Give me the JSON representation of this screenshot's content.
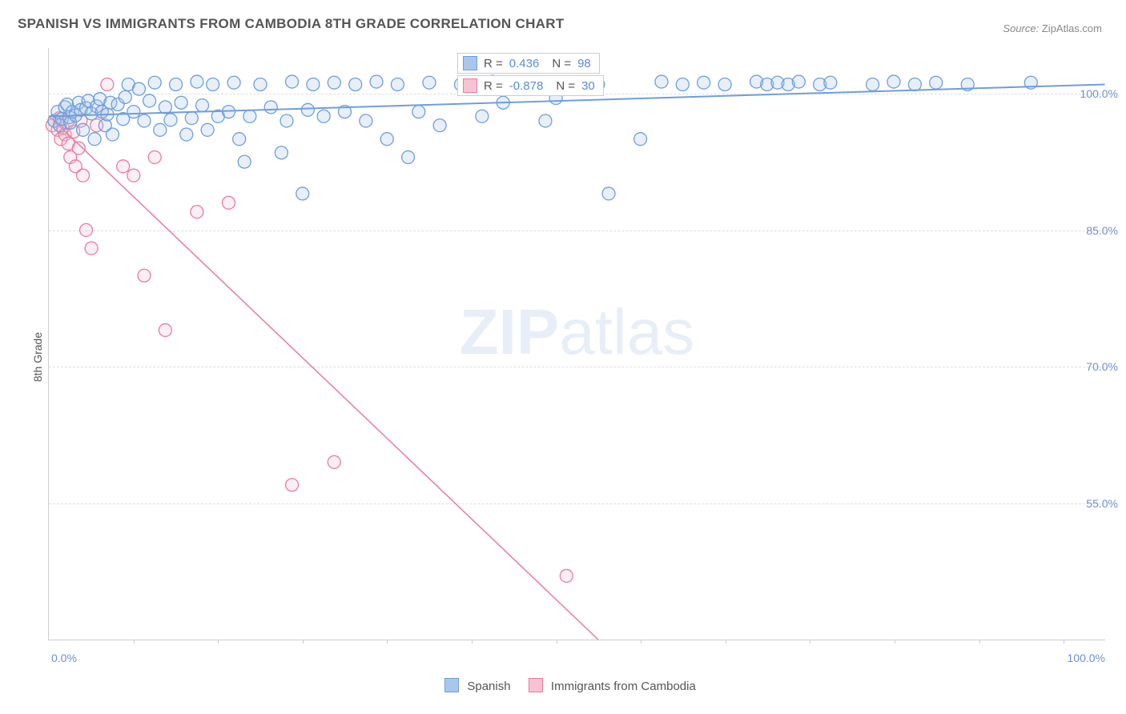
{
  "title": "SPANISH VS IMMIGRANTS FROM CAMBODIA 8TH GRADE CORRELATION CHART",
  "source_label": "Source:",
  "source_value": "ZipAtlas.com",
  "y_axis_label": "8th Grade",
  "watermark_bold": "ZIP",
  "watermark_light": "atlas",
  "chart": {
    "type": "scatter",
    "background": "#ffffff",
    "grid_color": "#dddddd",
    "axis_color": "#cccccc",
    "tick_label_color": "#6b8fd6",
    "xlim": [
      0,
      100
    ],
    "ylim": [
      40,
      105
    ],
    "x_ticks_first": "0.0%",
    "x_ticks_last": "100.0%",
    "y_ticks": [
      {
        "v": 100,
        "label": "100.0%"
      },
      {
        "v": 85,
        "label": "85.0%"
      },
      {
        "v": 70,
        "label": "70.0%"
      },
      {
        "v": 55,
        "label": "55.0%"
      }
    ],
    "x_minor_ticks": [
      8,
      16,
      24,
      32,
      40,
      48,
      56,
      64,
      72,
      80,
      88,
      96
    ],
    "marker_radius": 8
  },
  "series": {
    "spanish": {
      "label": "Spanish",
      "color_fill": "#a9c7ec",
      "color_stroke": "#6f9ed9",
      "trend": {
        "x1": 0,
        "y1": 97.5,
        "x2": 100,
        "y2": 101.0,
        "width": 2
      },
      "stats": {
        "r": "0.436",
        "n": "98"
      },
      "points": [
        [
          0.5,
          97
        ],
        [
          0.8,
          98
        ],
        [
          1.0,
          96.5
        ],
        [
          1.2,
          97.2
        ],
        [
          1.5,
          98.5
        ],
        [
          1.7,
          98.8
        ],
        [
          1.9,
          97.4
        ],
        [
          2.0,
          96.8
        ],
        [
          2.2,
          98.0
        ],
        [
          2.5,
          97.6
        ],
        [
          2.8,
          99.0
        ],
        [
          3.0,
          98.2
        ],
        [
          3.2,
          96.0
        ],
        [
          3.5,
          98.4
        ],
        [
          3.7,
          99.2
        ],
        [
          4.0,
          97.8
        ],
        [
          4.3,
          95.0
        ],
        [
          4.5,
          98.6
        ],
        [
          4.8,
          99.4
        ],
        [
          5.0,
          98.0
        ],
        [
          5.3,
          96.5
        ],
        [
          5.5,
          97.7
        ],
        [
          5.8,
          99.0
        ],
        [
          6.0,
          95.5
        ],
        [
          6.5,
          98.8
        ],
        [
          7.0,
          97.2
        ],
        [
          7.2,
          99.6
        ],
        [
          7.5,
          101.0
        ],
        [
          8.0,
          98.0
        ],
        [
          8.5,
          100.5
        ],
        [
          9.0,
          97.0
        ],
        [
          9.5,
          99.2
        ],
        [
          10.0,
          101.2
        ],
        [
          10.5,
          96.0
        ],
        [
          11.0,
          98.5
        ],
        [
          11.5,
          97.1
        ],
        [
          12.0,
          101.0
        ],
        [
          12.5,
          99.0
        ],
        [
          13.0,
          95.5
        ],
        [
          13.5,
          97.3
        ],
        [
          14.0,
          101.3
        ],
        [
          14.5,
          98.7
        ],
        [
          15.0,
          96.0
        ],
        [
          15.5,
          101.0
        ],
        [
          16.0,
          97.5
        ],
        [
          17.0,
          98.0
        ],
        [
          17.5,
          101.2
        ],
        [
          18.0,
          95.0
        ],
        [
          18.5,
          92.5
        ],
        [
          19.0,
          97.5
        ],
        [
          20.0,
          101.0
        ],
        [
          21.0,
          98.5
        ],
        [
          22.0,
          93.5
        ],
        [
          22.5,
          97.0
        ],
        [
          23.0,
          101.3
        ],
        [
          24.0,
          89.0
        ],
        [
          24.5,
          98.2
        ],
        [
          25.0,
          101.0
        ],
        [
          26.0,
          97.5
        ],
        [
          27.0,
          101.2
        ],
        [
          28.0,
          98.0
        ],
        [
          29.0,
          101.0
        ],
        [
          30.0,
          97.0
        ],
        [
          31.0,
          101.3
        ],
        [
          32.0,
          95.0
        ],
        [
          33.0,
          101.0
        ],
        [
          34.0,
          93.0
        ],
        [
          35.0,
          98.0
        ],
        [
          36.0,
          101.2
        ],
        [
          37.0,
          96.5
        ],
        [
          39.0,
          101.0
        ],
        [
          41.0,
          97.5
        ],
        [
          42.0,
          101.3
        ],
        [
          43.0,
          99.0
        ],
        [
          45.0,
          101.0
        ],
        [
          47.0,
          97.0
        ],
        [
          48.0,
          99.5
        ],
        [
          48.5,
          101.2
        ],
        [
          52.0,
          101.0
        ],
        [
          53.0,
          89.0
        ],
        [
          56.0,
          95.0
        ],
        [
          58.0,
          101.3
        ],
        [
          60.0,
          101.0
        ],
        [
          62.0,
          101.2
        ],
        [
          64.0,
          101.0
        ],
        [
          67.0,
          101.3
        ],
        [
          68.0,
          101.0
        ],
        [
          69.0,
          101.2
        ],
        [
          70.0,
          101.0
        ],
        [
          71.0,
          101.3
        ],
        [
          73.0,
          101.0
        ],
        [
          74.0,
          101.2
        ],
        [
          78.0,
          101.0
        ],
        [
          80.0,
          101.3
        ],
        [
          82.0,
          101.0
        ],
        [
          84.0,
          101.2
        ],
        [
          87.0,
          101.0
        ],
        [
          93.0,
          101.2
        ]
      ]
    },
    "cambodia": {
      "label": "Immigrants from Cambodia",
      "color_fill": "#f5c3d2",
      "color_stroke": "#e97ba2",
      "trend": {
        "x1": 0,
        "y1": 97.5,
        "x2": 52,
        "y2": 40.0,
        "width": 1.5
      },
      "stats": {
        "r": "-0.878",
        "n": "30"
      },
      "points": [
        [
          0.3,
          96.5
        ],
        [
          0.5,
          97.0
        ],
        [
          0.8,
          96.0
        ],
        [
          1.0,
          97.3
        ],
        [
          1.1,
          95.0
        ],
        [
          1.3,
          96.2
        ],
        [
          1.5,
          95.5
        ],
        [
          1.7,
          96.8
        ],
        [
          1.8,
          94.5
        ],
        [
          2.0,
          93.0
        ],
        [
          2.3,
          95.8
        ],
        [
          2.5,
          92.0
        ],
        [
          2.8,
          94.0
        ],
        [
          3.0,
          97.0
        ],
        [
          3.2,
          91.0
        ],
        [
          3.5,
          85.0
        ],
        [
          4.0,
          83.0
        ],
        [
          4.5,
          96.5
        ],
        [
          5.0,
          98.0
        ],
        [
          5.5,
          101.0
        ],
        [
          7.0,
          92.0
        ],
        [
          8.0,
          91.0
        ],
        [
          9.0,
          80.0
        ],
        [
          10.0,
          93.0
        ],
        [
          11.0,
          74.0
        ],
        [
          14.0,
          87.0
        ],
        [
          17.0,
          88.0
        ],
        [
          23.0,
          57.0
        ],
        [
          27.0,
          59.5
        ],
        [
          49.0,
          47.0
        ]
      ]
    }
  },
  "statbox_labels": {
    "r_eq": "R =",
    "n_eq": "N ="
  },
  "legend": {
    "spanish": "Spanish",
    "cambodia": "Immigrants from Cambodia"
  }
}
